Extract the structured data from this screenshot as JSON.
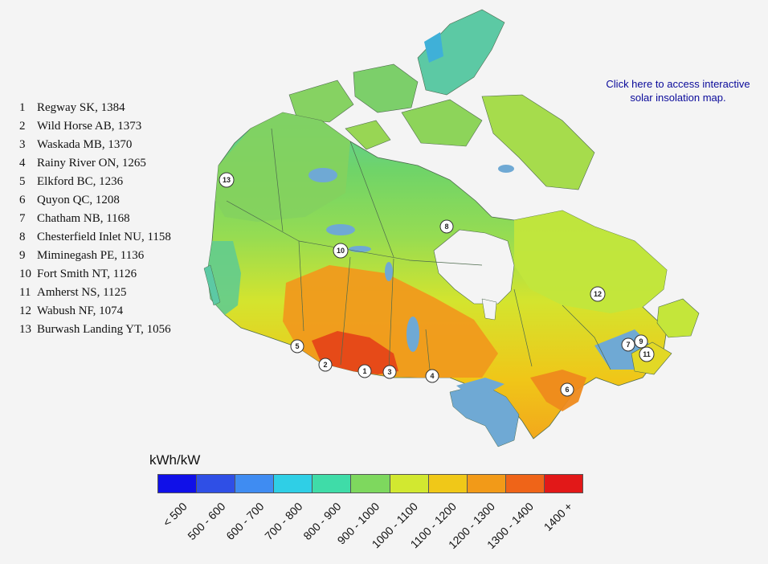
{
  "stations": [
    {
      "num": "1",
      "label": "Regway SK, 1384"
    },
    {
      "num": "2",
      "label": "Wild Horse AB, 1373"
    },
    {
      "num": "3",
      "label": "Waskada MB, 1370"
    },
    {
      "num": "4",
      "label": "Rainy River ON, 1265"
    },
    {
      "num": "5",
      "label": "Elkford BC, 1236"
    },
    {
      "num": "6",
      "label": "Quyon QC, 1208"
    },
    {
      "num": "7",
      "label": "Chatham NB, 1168"
    },
    {
      "num": "8",
      "label": "Chesterfield Inlet NU, 1158"
    },
    {
      "num": "9",
      "label": "Miminegash PE, 1136"
    },
    {
      "num": "10",
      "label": "Fort Smith NT, 1126"
    },
    {
      "num": "11",
      "label": "Amherst NS, 1125"
    },
    {
      "num": "12",
      "label": "Wabush NF, 1074"
    },
    {
      "num": "13",
      "label": "Burwash Landing YT, 1056"
    }
  ],
  "link": {
    "line1": "Click here to access interactive",
    "line2": "solar insolation map."
  },
  "scale": {
    "title": "kWh/kW",
    "bins": [
      {
        "label": "< 500",
        "color": "#1010e8"
      },
      {
        "label": "500 - 600",
        "color": "#2f4fe6"
      },
      {
        "label": "600 - 700",
        "color": "#3f8cf2"
      },
      {
        "label": "700 - 800",
        "color": "#2fcfe6"
      },
      {
        "label": "800 - 900",
        "color": "#3fdca8"
      },
      {
        "label": "900 - 1000",
        "color": "#7ed85e"
      },
      {
        "label": "1000 - 1100",
        "color": "#d2e830"
      },
      {
        "label": "1100 - 1200",
        "color": "#f0c818"
      },
      {
        "label": "1200 - 1300",
        "color": "#f29a18"
      },
      {
        "label": "1300 - 1400",
        "color": "#ef6418"
      },
      {
        "label": "1400 +",
        "color": "#e21818"
      }
    ]
  },
  "colors": {
    "background": "#f4f4f4",
    "water": "#6fa9d4",
    "boundary": "#4d6a4d"
  }
}
